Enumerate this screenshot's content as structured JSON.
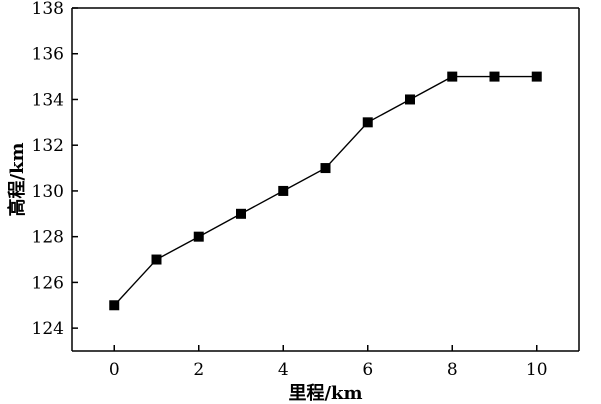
{
  "chart_data": {
    "type": "line",
    "xlabel": "里程/km",
    "ylabel": "高程/km",
    "xlim": [
      -1,
      11
    ],
    "ylim": [
      123,
      138
    ],
    "x_ticks": [
      0,
      2,
      4,
      6,
      8,
      10
    ],
    "y_ticks": [
      124,
      126,
      128,
      130,
      132,
      134,
      136,
      138
    ],
    "grid": false,
    "series": [
      {
        "marker": "square",
        "color": "#000000",
        "x": [
          0,
          1,
          2,
          3,
          4,
          5,
          6,
          7,
          8,
          9,
          10
        ],
        "y": [
          125,
          127,
          128,
          129,
          130,
          131,
          133,
          134,
          135,
          135,
          135
        ]
      }
    ]
  }
}
